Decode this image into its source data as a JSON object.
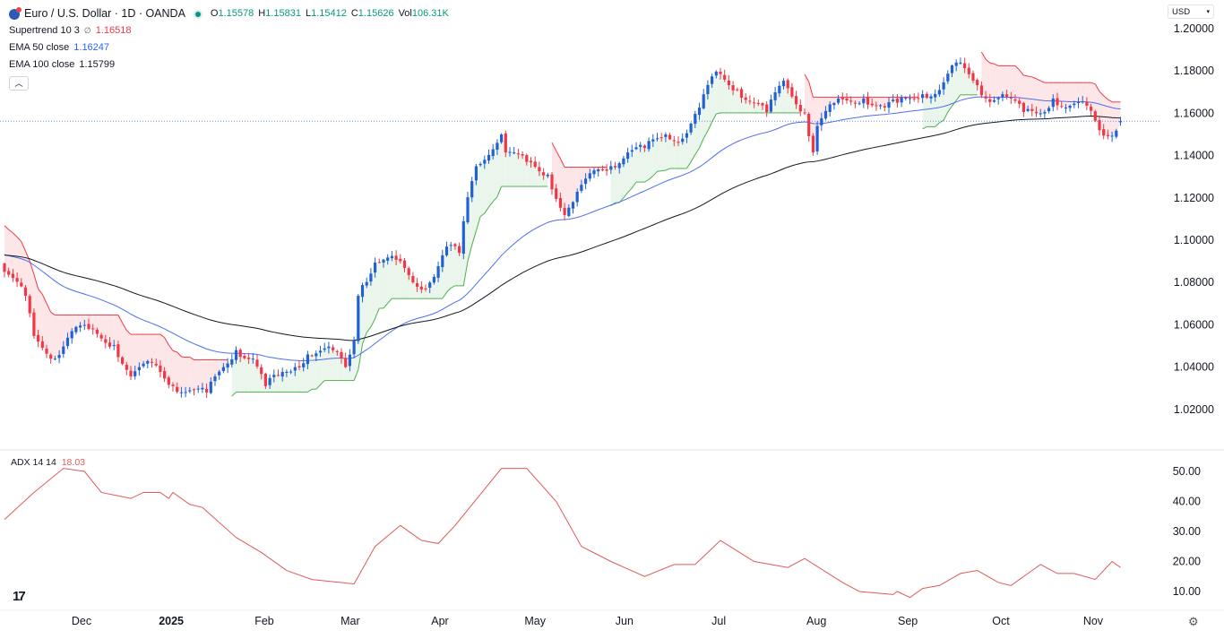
{
  "header": {
    "symbol_title": "Euro / U.S. Dollar · 1D · OANDA",
    "ohlc": {
      "o_label": "O",
      "o": "1.15578",
      "h_label": "H",
      "h": "1.15831",
      "l_label": "L",
      "l": "1.15412",
      "c_label": "C",
      "c": "1.15626",
      "vol_label": "Vol",
      "vol": "106.31K"
    },
    "indicators": [
      {
        "name": "Supertrend 10 3",
        "icon": "∅",
        "value": "1.16518",
        "color": "#f23645"
      },
      {
        "name": "EMA 50 close",
        "value": "1.16247",
        "color": "#2962ff"
      },
      {
        "name": "EMA 100 close",
        "value": "1.15799",
        "color": "#131722"
      }
    ],
    "collapse_icon": "chevron-up-icon",
    "currency": "USD"
  },
  "adx_legend": {
    "name": "ADX 14 14",
    "value": "18.03"
  },
  "colors": {
    "up": "#2062d4",
    "down": "#f23645",
    "ema50": "#4c6ef0",
    "ema100": "#131722",
    "st_up": "#4caf50",
    "st_down": "#f23645",
    "st_up_fill": "#e8f5e9",
    "st_down_fill": "#fde3e4",
    "adx": "#e05a5a",
    "last_price_line": "#2962ff"
  },
  "chart_data": [
    {
      "type": "candlestick",
      "title": "Euro / U.S. Dollar · 1D · OANDA",
      "y_ticks": [
        "1.20000",
        "1.18000",
        "1.16000",
        "1.14000",
        "1.12000",
        "1.10000",
        "1.08000",
        "1.06000",
        "1.04000",
        "1.02000"
      ],
      "ylim": [
        1.0,
        1.2
      ],
      "bar_count": 266,
      "close_keypoints": [
        [
          0,
          1.085
        ],
        [
          5,
          1.0737
        ],
        [
          7,
          1.0547
        ],
        [
          12,
          1.044
        ],
        [
          16,
          1.057
        ],
        [
          20,
          1.058
        ],
        [
          26,
          1.0504
        ],
        [
          30,
          1.0356
        ],
        [
          35,
          1.042
        ],
        [
          40,
          1.031
        ],
        [
          44,
          1.029
        ],
        [
          48,
          1.028
        ],
        [
          52,
          1.04
        ],
        [
          55,
          1.048
        ],
        [
          59,
          1.044
        ],
        [
          62,
          1.031
        ],
        [
          65,
          1.036
        ],
        [
          69,
          1.04
        ],
        [
          72,
          1.046
        ],
        [
          78,
          1.048
        ],
        [
          81,
          1.04
        ],
        [
          83,
          1.0525
        ],
        [
          84,
          1.0737
        ],
        [
          85,
          1.0788
        ],
        [
          88,
          1.0894
        ],
        [
          93,
          1.0907
        ],
        [
          98,
          1.078
        ],
        [
          101,
          1.08
        ],
        [
          105,
          1.097
        ],
        [
          108,
          1.094
        ],
        [
          110,
          1.1203
        ],
        [
          112,
          1.135
        ],
        [
          118,
          1.15
        ],
        [
          119,
          1.1415
        ],
        [
          124,
          1.137
        ],
        [
          129,
          1.131
        ],
        [
          133,
          1.1119
        ],
        [
          135,
          1.118
        ],
        [
          140,
          1.133
        ],
        [
          144,
          1.135
        ],
        [
          148,
          1.1415
        ],
        [
          152,
          1.1436
        ],
        [
          157,
          1.15
        ],
        [
          161,
          1.148
        ],
        [
          165,
          1.1627
        ],
        [
          169,
          1.1797
        ],
        [
          174,
          1.171
        ],
        [
          181,
          1.1606
        ],
        [
          185,
          1.1754
        ],
        [
          190,
          1.16
        ],
        [
          192,
          1.1415
        ],
        [
          193,
          1.154
        ],
        [
          197,
          1.1648
        ],
        [
          204,
          1.167
        ],
        [
          209,
          1.1627
        ],
        [
          212,
          1.165
        ],
        [
          218,
          1.169
        ],
        [
          222,
          1.171
        ],
        [
          226,
          1.184
        ],
        [
          231,
          1.1733
        ],
        [
          233,
          1.167
        ],
        [
          237,
          1.169
        ],
        [
          242,
          1.1606
        ],
        [
          246,
          1.16
        ],
        [
          249,
          1.167
        ],
        [
          252,
          1.1627
        ],
        [
          257,
          1.1636
        ],
        [
          260,
          1.152
        ],
        [
          262,
          1.1492
        ],
        [
          265,
          1.15626
        ]
      ],
      "last_bar": {
        "open": 1.15578,
        "high": 1.15831,
        "low": 1.15412,
        "close": 1.15626
      },
      "start_value_ema": 1.093,
      "x_ticks": [
        {
          "label": "Dec",
          "bar": 18.3
        },
        {
          "label": "2025",
          "bar": 39.6,
          "bold": true
        },
        {
          "label": "Feb",
          "bar": 61.7
        },
        {
          "label": "Mar",
          "bar": 82.1
        },
        {
          "label": "Apr",
          "bar": 103.4
        },
        {
          "label": "May",
          "bar": 126
        },
        {
          "label": "Jun",
          "bar": 147.2
        },
        {
          "label": "Jul",
          "bar": 169.6
        },
        {
          "label": "Aug",
          "bar": 192.8
        },
        {
          "label": "Sep",
          "bar": 214.5
        },
        {
          "label": "Oct",
          "bar": 236.6
        },
        {
          "label": "Nov",
          "bar": 258.5
        }
      ]
    },
    {
      "type": "line",
      "title": "ADX 14 14",
      "y_ticks": [
        "50.00",
        "40.00",
        "30.00",
        "20.00",
        "10.00"
      ],
      "ylim": [
        5,
        55
      ],
      "points": [
        [
          0,
          34
        ],
        [
          7,
          43
        ],
        [
          14,
          51
        ],
        [
          19,
          50
        ],
        [
          23,
          43
        ],
        [
          30,
          41
        ],
        [
          33,
          43
        ],
        [
          37,
          43
        ],
        [
          39,
          41
        ],
        [
          40,
          43
        ],
        [
          44,
          39
        ],
        [
          47,
          38
        ],
        [
          55,
          28
        ],
        [
          61,
          23
        ],
        [
          67,
          17
        ],
        [
          73,
          14
        ],
        [
          80,
          13
        ],
        [
          83,
          12.5
        ],
        [
          88,
          25
        ],
        [
          94,
          32
        ],
        [
          99,
          27
        ],
        [
          103,
          26
        ],
        [
          107,
          32
        ],
        [
          118,
          51
        ],
        [
          124,
          51
        ],
        [
          131,
          40
        ],
        [
          137,
          25
        ],
        [
          144,
          20
        ],
        [
          152,
          15
        ],
        [
          159,
          19
        ],
        [
          164,
          19
        ],
        [
          170,
          27
        ],
        [
          178,
          20
        ],
        [
          182,
          19
        ],
        [
          186,
          18
        ],
        [
          190,
          21
        ],
        [
          199,
          13
        ],
        [
          203,
          10
        ],
        [
          211,
          9
        ],
        [
          212,
          10
        ],
        [
          215,
          8
        ],
        [
          218,
          11
        ],
        [
          222,
          12
        ],
        [
          227,
          16
        ],
        [
          231,
          17
        ],
        [
          236,
          13
        ],
        [
          239,
          12
        ],
        [
          246,
          19
        ],
        [
          250,
          16
        ],
        [
          254,
          16
        ],
        [
          259,
          14
        ],
        [
          263,
          20
        ],
        [
          265,
          18
        ]
      ]
    }
  ]
}
